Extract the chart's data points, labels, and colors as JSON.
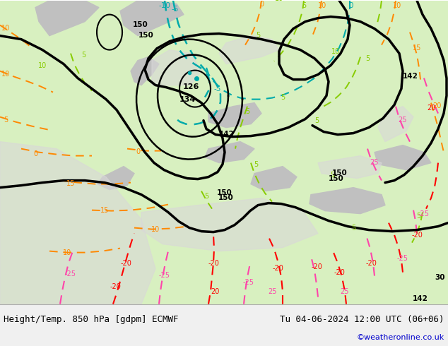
{
  "title_left": "Height/Temp. 850 hPa [gdpm] ECMWF",
  "title_right": "Tu 04-06-2024 12:00 UTC (06+06)",
  "credit": "©weatheronline.co.uk",
  "bg_color": "#d8f0c0",
  "land_color": "#c8e8a8",
  "sea_color": "#e8e8e8",
  "gray_land_color": "#c0c0c0",
  "fig_width": 6.34,
  "fig_height": 4.9,
  "dpi": 100,
  "bottom_bar_color": "#f0f0f0",
  "title_fontsize": 9,
  "credit_color": "#0000cc",
  "credit_fontsize": 8
}
